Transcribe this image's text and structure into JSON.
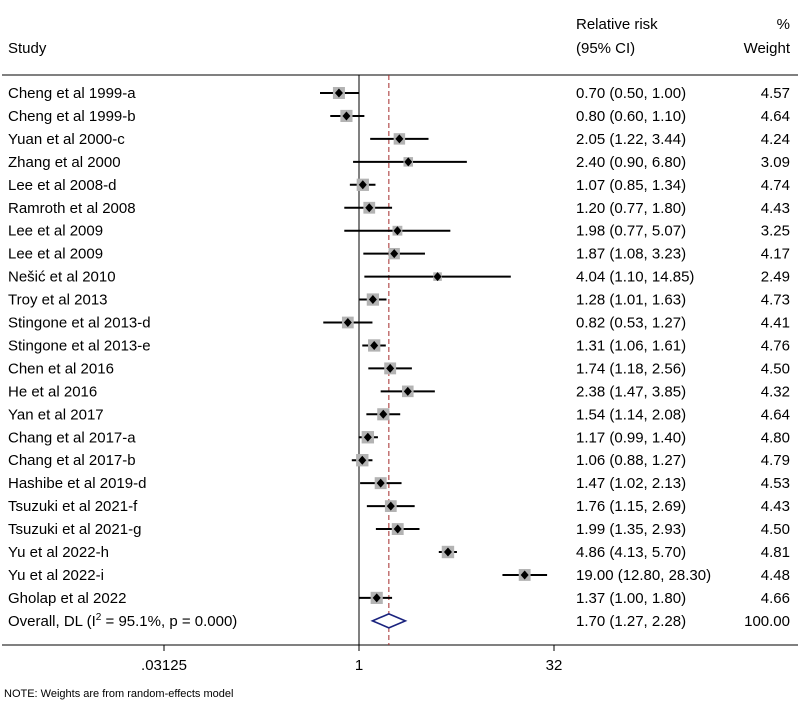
{
  "chart_data": {
    "type": "forest",
    "headers": {
      "study": "Study",
      "rr_line1": "Relative risk",
      "rr_line2": "(95% CI)",
      "weight_line1": "%",
      "weight_line2": "Weight"
    },
    "x_ticks": [
      {
        "value": 0.03125,
        "label": ".03125"
      },
      {
        "value": 1,
        "label": "1"
      },
      {
        "value": 32,
        "label": "32"
      }
    ],
    "x_scale": "log",
    "xlim": [
      0.0156,
      40
    ],
    "null_line": 1,
    "pooled_line": 1.7,
    "studies": [
      {
        "study": "Cheng et al 1999-a",
        "rr": 0.7,
        "lo": 0.5,
        "hi": 1.0,
        "ci": "0.70 (0.50, 1.00)",
        "weight": "4.57"
      },
      {
        "study": "Cheng et al 1999-b",
        "rr": 0.8,
        "lo": 0.6,
        "hi": 1.1,
        "ci": "0.80 (0.60, 1.10)",
        "weight": "4.64"
      },
      {
        "study": "Yuan et al 2000-c",
        "rr": 2.05,
        "lo": 1.22,
        "hi": 3.44,
        "ci": "2.05 (1.22, 3.44)",
        "weight": "4.24"
      },
      {
        "study": "Zhang et al 2000",
        "rr": 2.4,
        "lo": 0.9,
        "hi": 6.8,
        "ci": "2.40 (0.90, 6.80)",
        "weight": "3.09"
      },
      {
        "study": "Lee et al 2008-d",
        "rr": 1.07,
        "lo": 0.85,
        "hi": 1.34,
        "ci": "1.07 (0.85, 1.34)",
        "weight": "4.74"
      },
      {
        "study": "Ramroth et al 2008",
        "rr": 1.2,
        "lo": 0.77,
        "hi": 1.8,
        "ci": "1.20 (0.77, 1.80)",
        "weight": "4.43"
      },
      {
        "study": "Lee et al 2009",
        "rr": 1.98,
        "lo": 0.77,
        "hi": 5.07,
        "ci": "1.98 (0.77, 5.07)",
        "weight": "3.25"
      },
      {
        "study": "Lee et al 2009",
        "rr": 1.87,
        "lo": 1.08,
        "hi": 3.23,
        "ci": "1.87 (1.08, 3.23)",
        "weight": "4.17"
      },
      {
        "study": "Nešić et al 2010",
        "rr": 4.04,
        "lo": 1.1,
        "hi": 14.85,
        "ci": "4.04 (1.10, 14.85)",
        "weight": "2.49"
      },
      {
        "study": "Troy et al 2013",
        "rr": 1.28,
        "lo": 1.01,
        "hi": 1.63,
        "ci": "1.28 (1.01, 1.63)",
        "weight": "4.73"
      },
      {
        "study": "Stingone et al 2013-d",
        "rr": 0.82,
        "lo": 0.53,
        "hi": 1.27,
        "ci": "0.82 (0.53, 1.27)",
        "weight": "4.41"
      },
      {
        "study": "Stingone et al 2013-e",
        "rr": 1.31,
        "lo": 1.06,
        "hi": 1.61,
        "ci": "1.31 (1.06, 1.61)",
        "weight": "4.76"
      },
      {
        "study": "Chen et al 2016",
        "rr": 1.74,
        "lo": 1.18,
        "hi": 2.56,
        "ci": "1.74 (1.18, 2.56)",
        "weight": "4.50"
      },
      {
        "study": "He et al 2016",
        "rr": 2.38,
        "lo": 1.47,
        "hi": 3.85,
        "ci": "2.38 (1.47, 3.85)",
        "weight": "4.32"
      },
      {
        "study": "Yan et al 2017",
        "rr": 1.54,
        "lo": 1.14,
        "hi": 2.08,
        "ci": "1.54 (1.14, 2.08)",
        "weight": "4.64"
      },
      {
        "study": "Chang et al 2017-a",
        "rr": 1.17,
        "lo": 0.99,
        "hi": 1.4,
        "ci": "1.17 (0.99, 1.40)",
        "weight": "4.80"
      },
      {
        "study": "Chang et al 2017-b",
        "rr": 1.06,
        "lo": 0.88,
        "hi": 1.27,
        "ci": "1.06 (0.88, 1.27)",
        "weight": "4.79"
      },
      {
        "study": "Hashibe et al 2019-d",
        "rr": 1.47,
        "lo": 1.02,
        "hi": 2.13,
        "ci": "1.47 (1.02, 2.13)",
        "weight": "4.53"
      },
      {
        "study": "Tsuzuki et al 2021-f",
        "rr": 1.76,
        "lo": 1.15,
        "hi": 2.69,
        "ci": "1.76 (1.15, 2.69)",
        "weight": "4.43"
      },
      {
        "study": "Tsuzuki et al 2021-g",
        "rr": 1.99,
        "lo": 1.35,
        "hi": 2.93,
        "ci": "1.99 (1.35, 2.93)",
        "weight": "4.50"
      },
      {
        "study": "Yu et al 2022-h",
        "rr": 4.86,
        "lo": 4.13,
        "hi": 5.7,
        "ci": "4.86 (4.13, 5.70)",
        "weight": "4.81"
      },
      {
        "study": "Yu et al 2022-i",
        "rr": 19.0,
        "lo": 12.8,
        "hi": 28.3,
        "ci": "19.00 (12.80, 28.30)",
        "weight": "4.48"
      },
      {
        "study": "Gholap et al 2022",
        "rr": 1.37,
        "lo": 1.0,
        "hi": 1.8,
        "ci": "1.37 (1.00, 1.80)",
        "weight": "4.66"
      }
    ],
    "overall": {
      "label_prefix": "Overall, DL (I",
      "label_sup": "2",
      "label_suffix": " = 95.1%, p = 0.000)",
      "rr": 1.7,
      "lo": 1.27,
      "hi": 2.28,
      "ci": "1.70 (1.27, 2.28)",
      "weight": "100.00"
    },
    "note": "NOTE: Weights are from random-effects model",
    "colors": {
      "box": "#b3b3b3",
      "point": "#000000",
      "line": "#000000",
      "pooled_line": "#a52a2a",
      "diamond": "#1a237e"
    }
  }
}
